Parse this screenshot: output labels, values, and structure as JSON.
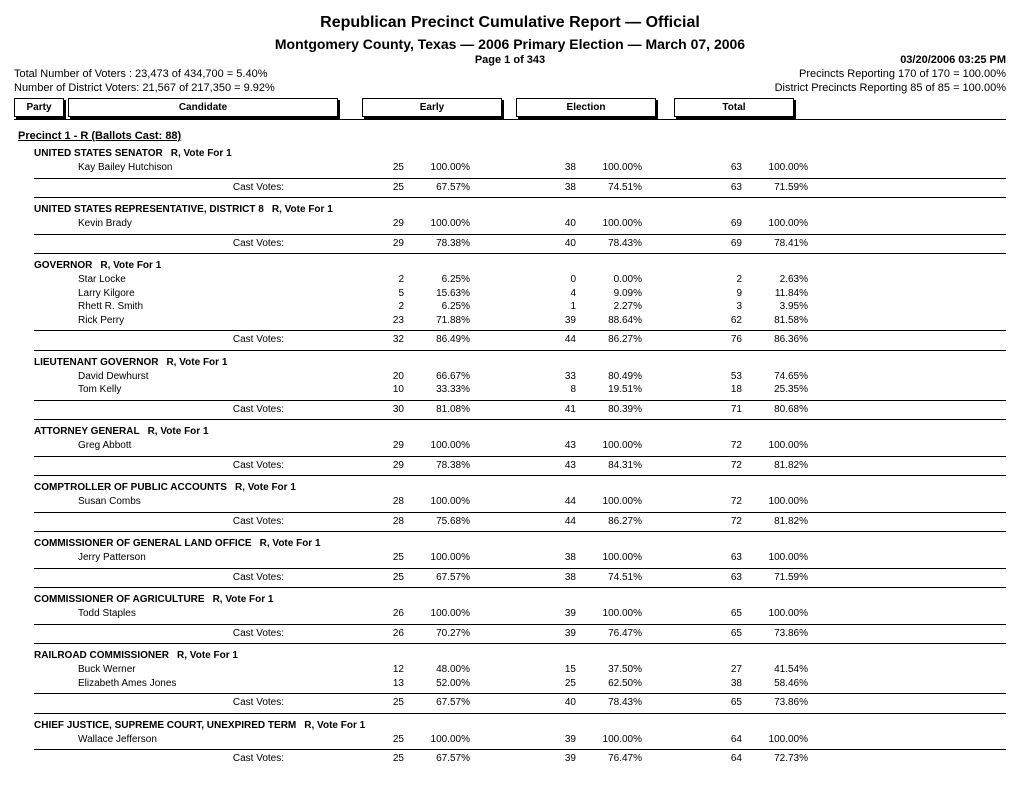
{
  "header": {
    "title_line1": "Republican Precinct Cumulative Report  —  Official",
    "title_line2": "Montgomery County, Texas  —  2006 Primary Election  —  March 07, 2006",
    "page": "Page 1 of 343",
    "timestamp": "03/20/2006 03:25 PM",
    "total_voters": "Total Number of Voters : 23,473 of 434,700 = 5.40%",
    "precincts_reporting": "Precincts Reporting 170 of 170 = 100.00%",
    "district_voters": "Number of District Voters: 21,567 of 217,350 = 9.92%",
    "district_precincts": "District Precincts Reporting 85 of 85 = 100.00%",
    "col_party": "Party",
    "col_candidate": "Candidate",
    "col_early": "Early",
    "col_election": "Election",
    "col_total": "Total"
  },
  "precinct_header": "Precinct 1 - R  (Ballots Cast: 88)",
  "cast_votes_label": "Cast Votes:",
  "vote_for_label": "R, Vote For 1",
  "races": [
    {
      "title": "UNITED STATES SENATOR",
      "candidates": [
        {
          "name": "Kay Bailey Hutchison",
          "e_n": "25",
          "e_p": "100.00%",
          "el_n": "38",
          "el_p": "100.00%",
          "t_n": "63",
          "t_p": "100.00%"
        }
      ],
      "cast": {
        "e_n": "25",
        "e_p": "67.57%",
        "el_n": "38",
        "el_p": "74.51%",
        "t_n": "63",
        "t_p": "71.59%"
      }
    },
    {
      "title": "UNITED STATES REPRESENTATIVE, DISTRICT 8",
      "candidates": [
        {
          "name": "Kevin Brady",
          "e_n": "29",
          "e_p": "100.00%",
          "el_n": "40",
          "el_p": "100.00%",
          "t_n": "69",
          "t_p": "100.00%"
        }
      ],
      "cast": {
        "e_n": "29",
        "e_p": "78.38%",
        "el_n": "40",
        "el_p": "78.43%",
        "t_n": "69",
        "t_p": "78.41%"
      }
    },
    {
      "title": "GOVERNOR",
      "candidates": [
        {
          "name": "Star Locke",
          "e_n": "2",
          "e_p": "6.25%",
          "el_n": "0",
          "el_p": "0.00%",
          "t_n": "2",
          "t_p": "2.63%"
        },
        {
          "name": "Larry Kilgore",
          "e_n": "5",
          "e_p": "15.63%",
          "el_n": "4",
          "el_p": "9.09%",
          "t_n": "9",
          "t_p": "11.84%"
        },
        {
          "name": "Rhett R. Smith",
          "e_n": "2",
          "e_p": "6.25%",
          "el_n": "1",
          "el_p": "2.27%",
          "t_n": "3",
          "t_p": "3.95%"
        },
        {
          "name": "Rick Perry",
          "e_n": "23",
          "e_p": "71.88%",
          "el_n": "39",
          "el_p": "88.64%",
          "t_n": "62",
          "t_p": "81.58%"
        }
      ],
      "cast": {
        "e_n": "32",
        "e_p": "86.49%",
        "el_n": "44",
        "el_p": "86.27%",
        "t_n": "76",
        "t_p": "86.36%"
      }
    },
    {
      "title": "LIEUTENANT GOVERNOR",
      "candidates": [
        {
          "name": "David Dewhurst",
          "e_n": "20",
          "e_p": "66.67%",
          "el_n": "33",
          "el_p": "80.49%",
          "t_n": "53",
          "t_p": "74.65%"
        },
        {
          "name": "Tom Kelly",
          "e_n": "10",
          "e_p": "33.33%",
          "el_n": "8",
          "el_p": "19.51%",
          "t_n": "18",
          "t_p": "25.35%"
        }
      ],
      "cast": {
        "e_n": "30",
        "e_p": "81.08%",
        "el_n": "41",
        "el_p": "80.39%",
        "t_n": "71",
        "t_p": "80.68%"
      }
    },
    {
      "title": "ATTORNEY GENERAL",
      "candidates": [
        {
          "name": "Greg Abbott",
          "e_n": "29",
          "e_p": "100.00%",
          "el_n": "43",
          "el_p": "100.00%",
          "t_n": "72",
          "t_p": "100.00%"
        }
      ],
      "cast": {
        "e_n": "29",
        "e_p": "78.38%",
        "el_n": "43",
        "el_p": "84.31%",
        "t_n": "72",
        "t_p": "81.82%"
      }
    },
    {
      "title": "COMPTROLLER OF PUBLIC ACCOUNTS",
      "candidates": [
        {
          "name": "Susan Combs",
          "e_n": "28",
          "e_p": "100.00%",
          "el_n": "44",
          "el_p": "100.00%",
          "t_n": "72",
          "t_p": "100.00%"
        }
      ],
      "cast": {
        "e_n": "28",
        "e_p": "75.68%",
        "el_n": "44",
        "el_p": "86.27%",
        "t_n": "72",
        "t_p": "81.82%"
      }
    },
    {
      "title": "COMMISSIONER OF GENERAL LAND OFFICE",
      "candidates": [
        {
          "name": "Jerry Patterson",
          "e_n": "25",
          "e_p": "100.00%",
          "el_n": "38",
          "el_p": "100.00%",
          "t_n": "63",
          "t_p": "100.00%"
        }
      ],
      "cast": {
        "e_n": "25",
        "e_p": "67.57%",
        "el_n": "38",
        "el_p": "74.51%",
        "t_n": "63",
        "t_p": "71.59%"
      }
    },
    {
      "title": "COMMISSIONER OF AGRICULTURE",
      "candidates": [
        {
          "name": "Todd Staples",
          "e_n": "26",
          "e_p": "100.00%",
          "el_n": "39",
          "el_p": "100.00%",
          "t_n": "65",
          "t_p": "100.00%"
        }
      ],
      "cast": {
        "e_n": "26",
        "e_p": "70.27%",
        "el_n": "39",
        "el_p": "76.47%",
        "t_n": "65",
        "t_p": "73.86%"
      }
    },
    {
      "title": "RAILROAD COMMISSIONER",
      "candidates": [
        {
          "name": "Buck Werner",
          "e_n": "12",
          "e_p": "48.00%",
          "el_n": "15",
          "el_p": "37.50%",
          "t_n": "27",
          "t_p": "41.54%"
        },
        {
          "name": "Elizabeth Ames Jones",
          "e_n": "13",
          "e_p": "52.00%",
          "el_n": "25",
          "el_p": "62.50%",
          "t_n": "38",
          "t_p": "58.46%"
        }
      ],
      "cast": {
        "e_n": "25",
        "e_p": "67.57%",
        "el_n": "40",
        "el_p": "78.43%",
        "t_n": "65",
        "t_p": "73.86%"
      }
    },
    {
      "title": "CHIEF JUSTICE,  SUPREME COURT, UNEXPIRED TERM",
      "candidates": [
        {
          "name": "Wallace Jefferson",
          "e_n": "25",
          "e_p": "100.00%",
          "el_n": "39",
          "el_p": "100.00%",
          "t_n": "64",
          "t_p": "100.00%"
        }
      ],
      "cast": {
        "e_n": "25",
        "e_p": "67.57%",
        "el_n": "39",
        "el_p": "76.47%",
        "t_n": "64",
        "t_p": "72.73%"
      }
    }
  ]
}
